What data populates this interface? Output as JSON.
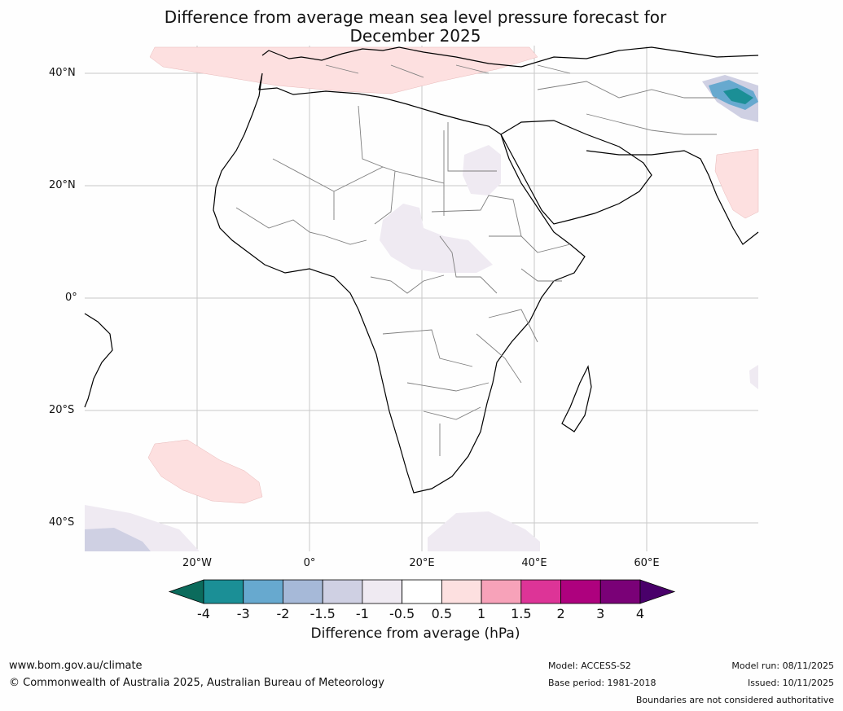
{
  "title_line1": "Difference from average mean sea level pressure forecast for",
  "title_line2": "December 2025",
  "lat_labels": [
    "40°N",
    "20°N",
    "0°",
    "20°S",
    "40°S"
  ],
  "lon_labels": [
    "20°W",
    "0°",
    "20°E",
    "40°E",
    "60°E"
  ],
  "colorbar": {
    "ticks": [
      "-4",
      "-3",
      "-2",
      "-1.5",
      "-1",
      "-0.5",
      "0.5",
      "1",
      "1.5",
      "2",
      "3",
      "4"
    ],
    "colors": [
      "#0b6b5c",
      "#1b8f96",
      "#67a9cf",
      "#a6b9d8",
      "#cfd0e3",
      "#efeaf2",
      "#ffffff",
      "#fde0e0",
      "#f7a2b9",
      "#dd3497",
      "#ae017e",
      "#7a0177",
      "#49006a"
    ],
    "label": "Difference from average (hPa)"
  },
  "footer": {
    "website": "www.bom.gov.au/climate",
    "copyright": "© Commonwealth of Australia 2025, Australian Bureau of Meteorology",
    "model": "Model: ACCESS-S2",
    "base_period": "Base period: 1981-2018",
    "model_run": "Model run: 08/11/2025",
    "issued": "Issued: 10/11/2025",
    "disclaimer": "Boundaries are not considered authoritative"
  }
}
